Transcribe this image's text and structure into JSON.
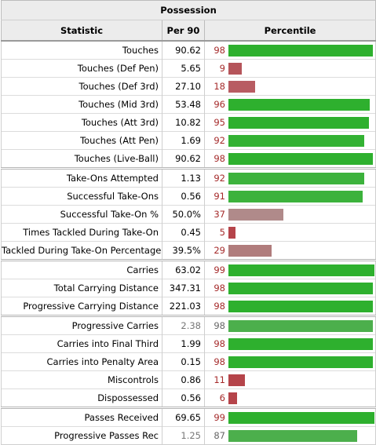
{
  "table": {
    "caption": "Possession",
    "headers": {
      "statistic": "Statistic",
      "per90": "Per 90",
      "percentile": "Percentile"
    },
    "groups": [
      {
        "rows": [
          {
            "stat": "Touches",
            "per90": "90.62",
            "pct": "98",
            "pct_value": 98,
            "color": "#2eb02e"
          },
          {
            "stat": "Touches (Def Pen)",
            "per90": "5.65",
            "pct": "9",
            "pct_value": 9,
            "color": "#b5545a"
          },
          {
            "stat": "Touches (Def 3rd)",
            "per90": "27.10",
            "pct": "18",
            "pct_value": 18,
            "color": "#b85c62"
          },
          {
            "stat": "Touches (Mid 3rd)",
            "per90": "53.48",
            "pct": "96",
            "pct_value": 96,
            "color": "#2eb02e"
          },
          {
            "stat": "Touches (Att 3rd)",
            "per90": "10.82",
            "pct": "95",
            "pct_value": 95,
            "color": "#2eb02e"
          },
          {
            "stat": "Touches (Att Pen)",
            "per90": "1.69",
            "pct": "92",
            "pct_value": 92,
            "color": "#33b233"
          },
          {
            "stat": "Touches (Live-Ball)",
            "per90": "90.62",
            "pct": "98",
            "pct_value": 98,
            "color": "#2eb02e"
          }
        ]
      },
      {
        "rows": [
          {
            "stat": "Take-Ons Attempted",
            "per90": "1.13",
            "pct": "92",
            "pct_value": 92,
            "color": "#3cb23c"
          },
          {
            "stat": "Successful Take-Ons",
            "per90": "0.56",
            "pct": "91",
            "pct_value": 91,
            "color": "#3cb23c"
          },
          {
            "stat": "Successful Take-On %",
            "per90": "50.0%",
            "pct": "37",
            "pct_value": 37,
            "color": "#b08a8a"
          },
          {
            "stat": "Times Tackled During Take-On",
            "per90": "0.45",
            "pct": "5",
            "pct_value": 5,
            "color": "#b5444a"
          },
          {
            "stat": "Tackled During Take-On Percentage",
            "per90": "39.5%",
            "pct": "29",
            "pct_value": 29,
            "color": "#b07c7c"
          }
        ]
      },
      {
        "rows": [
          {
            "stat": "Carries",
            "per90": "63.02",
            "pct": "99",
            "pct_value": 99,
            "color": "#2eb02e"
          },
          {
            "stat": "Total Carrying Distance",
            "per90": "347.31",
            "pct": "98",
            "pct_value": 98,
            "color": "#2eb02e"
          },
          {
            "stat": "Progressive Carrying Distance",
            "per90": "221.03",
            "pct": "98",
            "pct_value": 98,
            "color": "#2eb02e"
          }
        ]
      },
      {
        "rows": [
          {
            "stat": "Progressive Carries",
            "per90": "2.38",
            "pct": "98",
            "pct_value": 98,
            "color": "#4caf4c",
            "muted": true
          },
          {
            "stat": "Carries into Final Third",
            "per90": "1.99",
            "pct": "98",
            "pct_value": 98,
            "color": "#2eb02e"
          },
          {
            "stat": "Carries into Penalty Area",
            "per90": "0.15",
            "pct": "98",
            "pct_value": 98,
            "color": "#2eb02e"
          },
          {
            "stat": "Miscontrols",
            "per90": "0.86",
            "pct": "11",
            "pct_value": 11,
            "color": "#b5444a"
          },
          {
            "stat": "Dispossessed",
            "per90": "0.56",
            "pct": "6",
            "pct_value": 6,
            "color": "#b5444a"
          }
        ]
      },
      {
        "rows": [
          {
            "stat": "Passes Received",
            "per90": "69.65",
            "pct": "99",
            "pct_value": 99,
            "color": "#2eb02e"
          },
          {
            "stat": "Progressive Passes Rec",
            "per90": "1.25",
            "pct": "87",
            "pct_value": 87,
            "color": "#4caf4c",
            "muted": true
          }
        ]
      }
    ]
  }
}
